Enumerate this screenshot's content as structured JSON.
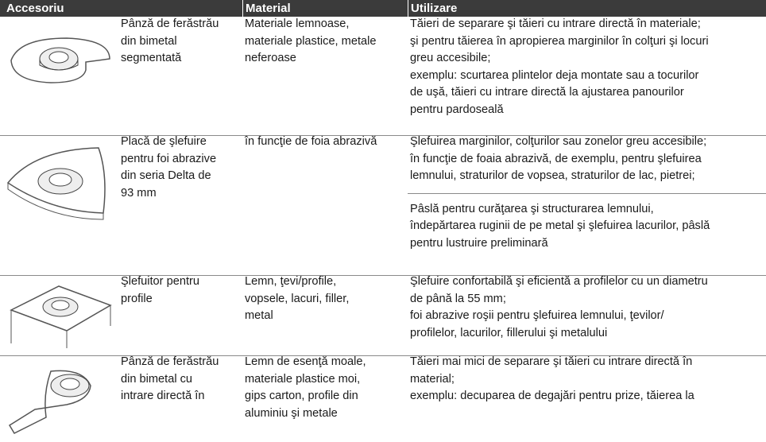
{
  "header": {
    "columns": [
      "Accesoriu",
      "Material",
      "Utilizare"
    ]
  },
  "table": {
    "rows": [
      {
        "name": [
          "Pânză de ferăstrău",
          "din bimetal",
          "segmentată"
        ],
        "material": [
          "Materiale lemnoase,",
          "materiale plastice, metale",
          "neferoase"
        ],
        "usage": [
          [
            "Tăieri de separare şi tăieri cu intrare directă în materiale;",
            "şi pentru tăierea în apropierea marginilor în colţuri şi locuri",
            "greu accesibile;",
            "exemplu: scurtarea plintelor deja montate sau a tocurilor",
            "de uşă, tăieri cu intrare directă la ajustarea panourilor",
            "pentru pardoseală"
          ]
        ]
      },
      {
        "name": [
          "Placă de şlefuire",
          "pentru foi abrazive",
          "din seria Delta de",
          "93 mm"
        ],
        "material": [
          "în funcţie de foia abrazivă"
        ],
        "usage": [
          [
            "Şlefuirea marginilor, colţurilor sau zonelor greu accesibile;",
            "în funcţie de foaia abrazivă, de exemplu, pentru şlefuirea",
            "lemnului, straturilor de vopsea, straturilor de lac, pietrei;"
          ],
          [
            "Pâslă pentru curăţarea şi structurarea lemnului,",
            "îndepărtarea ruginii de pe metal şi şlefuirea lacurilor, pâslă",
            "pentru lustruire preliminară"
          ]
        ]
      },
      {
        "name": [
          "Şlefuitor pentru",
          "profile"
        ],
        "material": [
          "Lemn, ţevi/profile,",
          "vopsele, lacuri, filler,",
          "metal"
        ],
        "usage": [
          [
            "Şlefuire confortabilă şi eficientă a profilelor cu un diametru",
            "de până la 55 mm;",
            "foi abrazive roşii pentru şlefuirea lemnului, ţevilor/",
            "profilelor, lacurilor, fillerului şi metalului"
          ]
        ]
      },
      {
        "name": [
          "Pânză de ferăstrău",
          "din bimetal cu",
          "intrare directă în"
        ],
        "material": [
          "Lemn de esenţă moale,",
          "materiale plastice moi,",
          "gips carton, profile din",
          "aluminiu şi metale"
        ],
        "usage": [
          [
            "Tăieri mai mici de separare şi tăieri cu intrare directă în",
            "material;",
            "exemplu: decuparea de degajări pentru prize, tăierea la"
          ]
        ]
      }
    ]
  }
}
